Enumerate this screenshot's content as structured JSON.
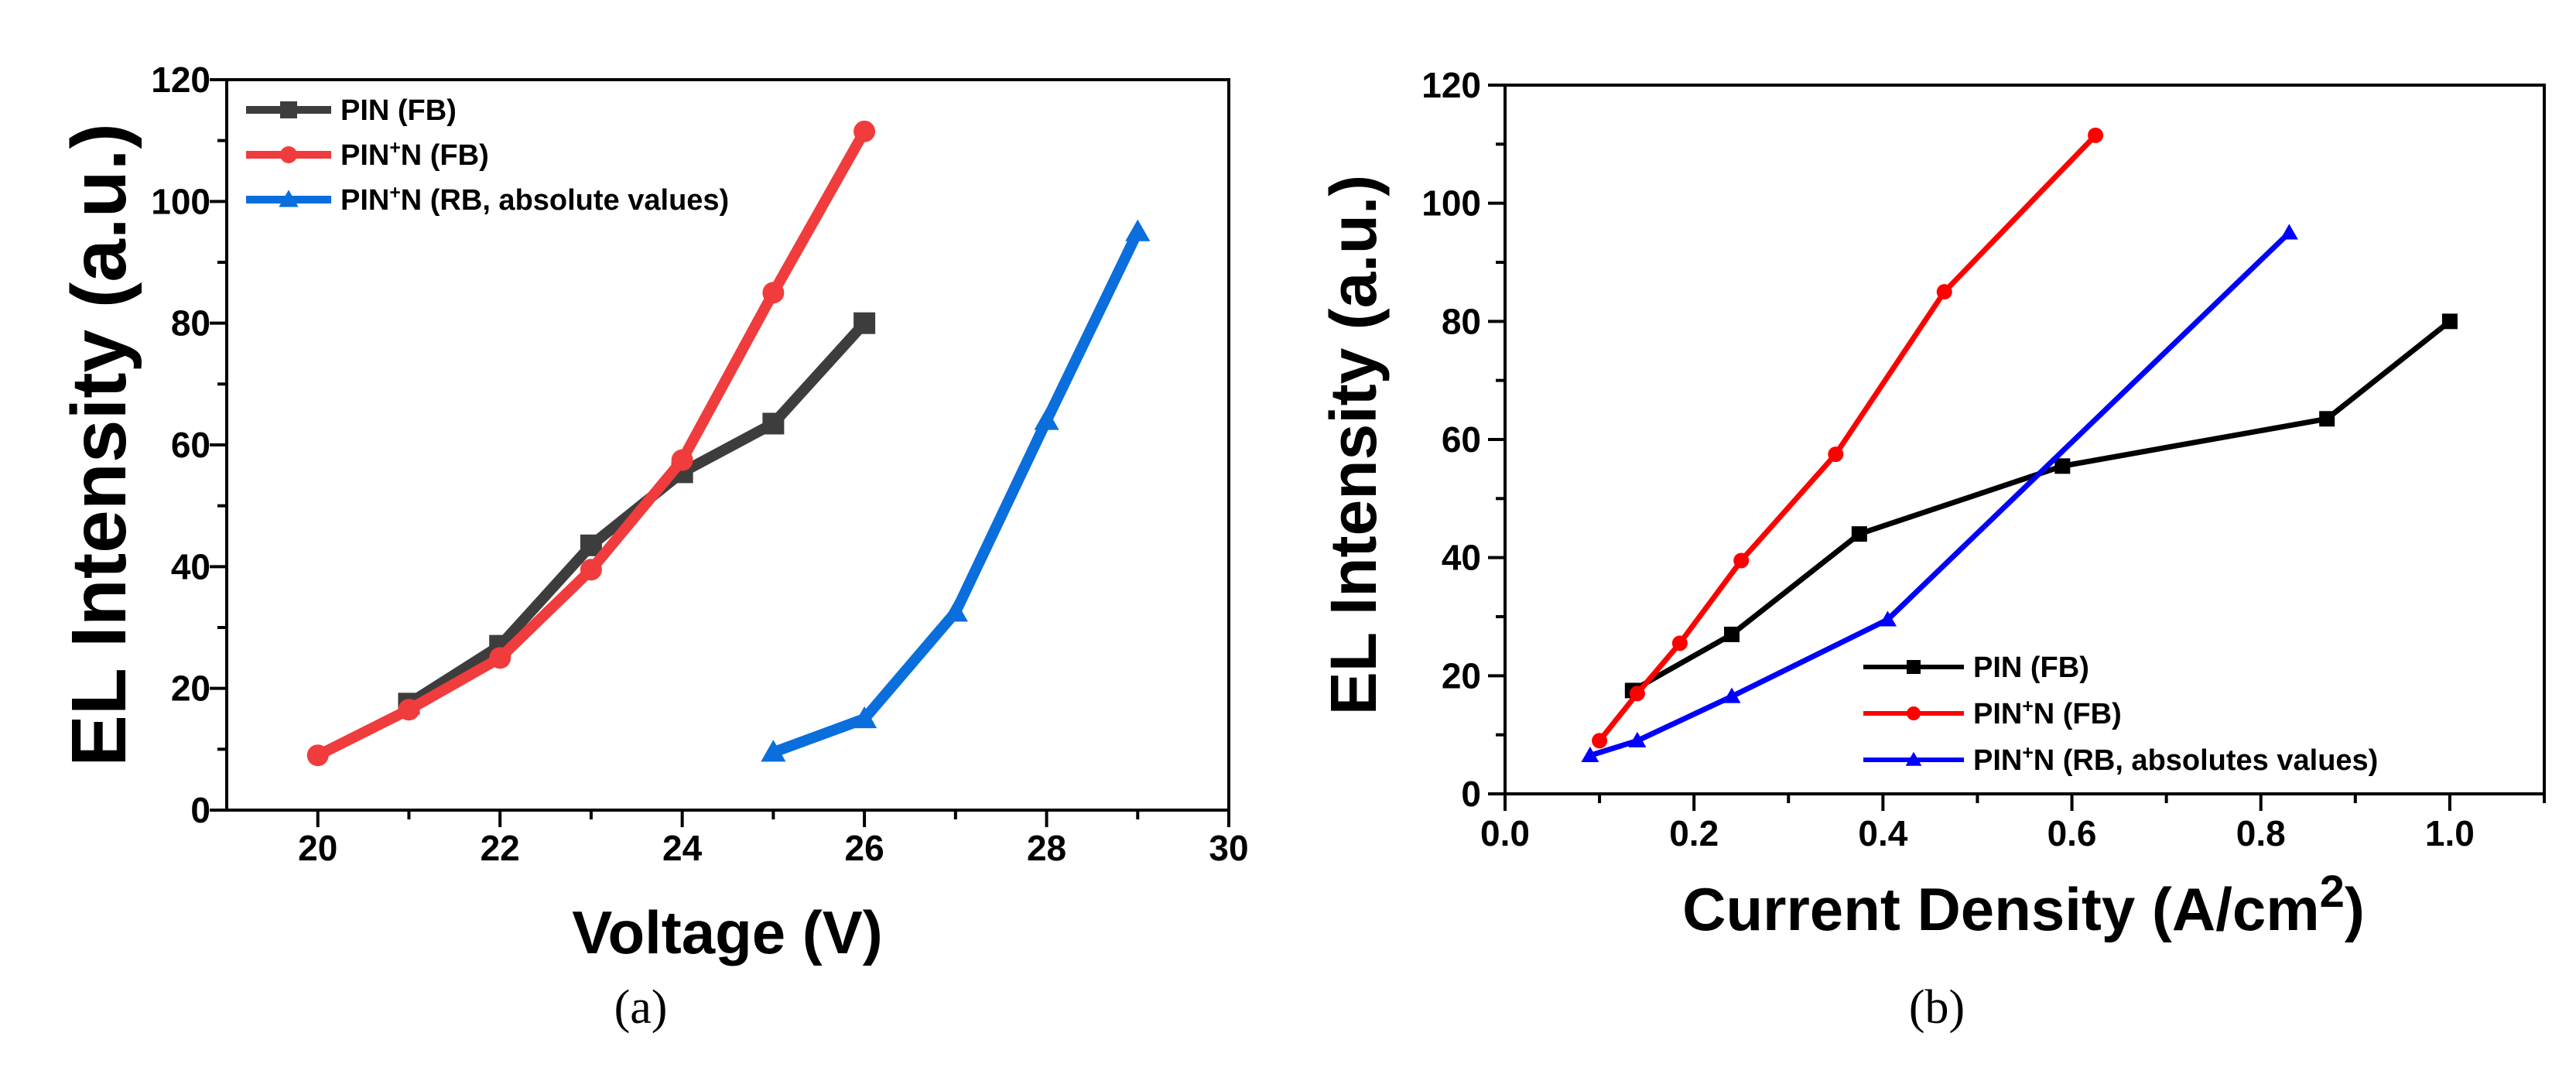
{
  "chart_data": [
    {
      "type": "line",
      "panel": "(a)",
      "xlabel": "Voltage (V)",
      "ylabel": "EL Intensity (a.u.)",
      "xlim": [
        19,
        30
      ],
      "ylim": [
        0,
        120
      ],
      "xticks": [
        20,
        22,
        24,
        26,
        28,
        30
      ],
      "yticks": [
        0,
        20,
        40,
        60,
        80,
        100,
        120
      ],
      "legend_position": "top-left",
      "series": [
        {
          "name": "PIN (FB)",
          "legend": {
            "base": "PIN (FB)"
          },
          "color": "#3d3d3d",
          "marker": "square",
          "x": [
            21,
            22,
            23,
            24,
            25,
            26
          ],
          "y": [
            17.5,
            27,
            43.5,
            55.5,
            63.5,
            80
          ]
        },
        {
          "name": "PIN+N (FB)",
          "legend": {
            "a": "PIN",
            "sup": "+",
            "b": "N (FB)"
          },
          "color": "#f03c3c",
          "marker": "circle",
          "x": [
            20,
            21,
            22,
            23,
            24,
            25,
            26
          ],
          "y": [
            9,
            16.5,
            25,
            39.5,
            57.5,
            85,
            111.5
          ]
        },
        {
          "name": "PIN+N (RB, absolute values)",
          "legend": {
            "a": "PIN",
            "sup": "+",
            "b": "N (RB, absolute values)"
          },
          "color": "#0a6edc",
          "marker": "triangle",
          "x": [
            25,
            26,
            27,
            28,
            29
          ],
          "y": [
            9.5,
            15,
            32.5,
            64,
            95
          ]
        }
      ]
    },
    {
      "type": "line",
      "panel": "(b)",
      "xlabel": {
        "base": "Current Density (A/cm",
        "sup": "2",
        "end": ")"
      },
      "ylabel": "EL Intensity (a.u.)",
      "xlim": [
        0.0,
        1.1
      ],
      "ylim": [
        0,
        120
      ],
      "xticks": [
        "0.0",
        "0.2",
        "0.4",
        "0.6",
        "0.8",
        "1.0"
      ],
      "yticks": [
        0,
        20,
        40,
        60,
        80,
        100,
        120
      ],
      "legend_position": "bottom-right",
      "series": [
        {
          "name": "PIN (FB)",
          "legend": {
            "base": "PIN (FB)"
          },
          "color": "#000000",
          "marker": "square",
          "x": [
            0.135,
            0.24,
            0.375,
            0.59,
            0.87,
            1.0
          ],
          "y": [
            17.5,
            27,
            44,
            55.5,
            63.5,
            80
          ]
        },
        {
          "name": "PIN+N (FB)",
          "legend": {
            "a": "PIN",
            "sup": "+",
            "b": "N (FB)"
          },
          "color": "#ff0000",
          "marker": "circle",
          "x": [
            0.1,
            0.14,
            0.185,
            0.25,
            0.35,
            0.465,
            0.625
          ],
          "y": [
            9,
            17,
            25.5,
            39.5,
            57.5,
            85,
            111.5
          ]
        },
        {
          "name": "PIN+N (RB, absolutes values)",
          "legend": {
            "a": "PIN",
            "sup": "+",
            "b": "N (RB, absolutes values)"
          },
          "color": "#0000ff",
          "marker": "triangle",
          "x": [
            0.09,
            0.14,
            0.24,
            0.405,
            0.83
          ],
          "y": [
            6.5,
            9,
            16.5,
            29.5,
            95
          ]
        }
      ]
    }
  ]
}
